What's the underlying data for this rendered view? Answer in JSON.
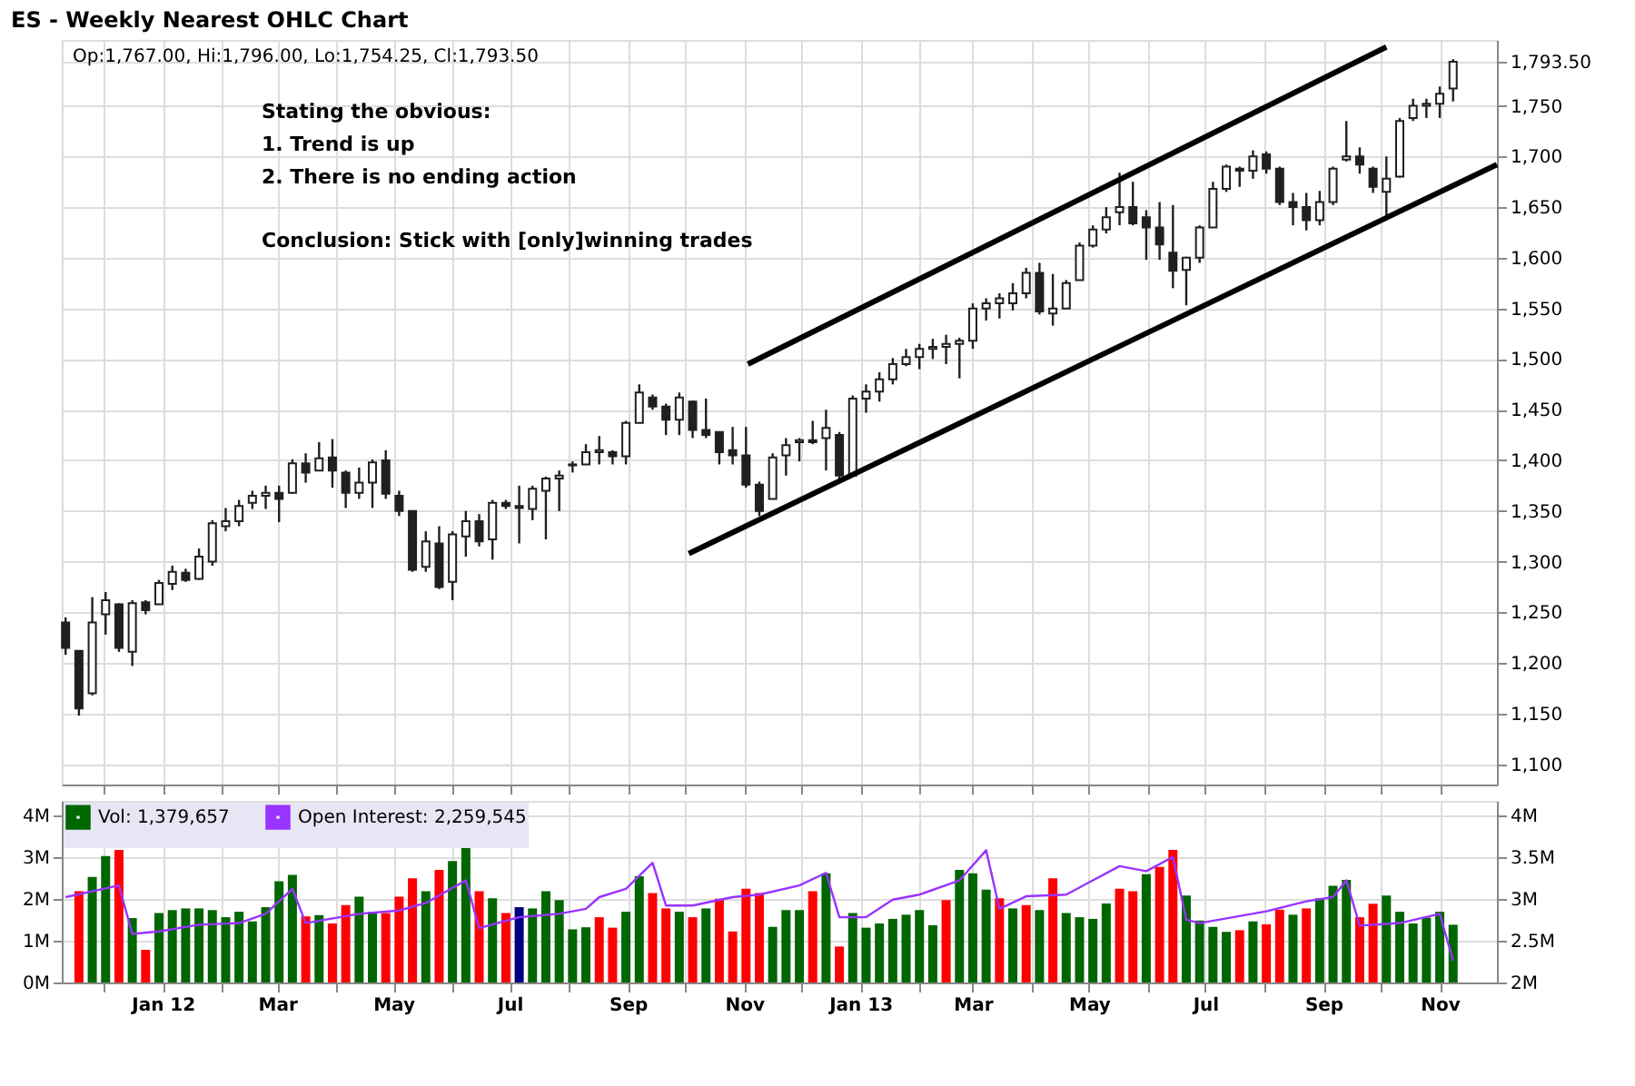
{
  "chart_data": [
    {
      "type": "candlestick",
      "title": "ES - Weekly Nearest OHLC Chart",
      "color": "#202020",
      "x": [
        "2011-11-11",
        "2011-11-18",
        "2011-11-25",
        "2011-12-02",
        "2011-12-09",
        "2011-12-16",
        "2011-12-23",
        "2011-12-30",
        "2012-01-06",
        "2012-01-13",
        "2012-01-20",
        "2012-01-27",
        "2012-02-03",
        "2012-02-10",
        "2012-02-17",
        "2012-02-24",
        "2012-03-02",
        "2012-03-09",
        "2012-03-16",
        "2012-03-23",
        "2012-03-30",
        "2012-04-06",
        "2012-04-13",
        "2012-04-20",
        "2012-04-27",
        "2012-05-04",
        "2012-05-11",
        "2012-05-18",
        "2012-05-25",
        "2012-06-01",
        "2012-06-08",
        "2012-06-15",
        "2012-06-22",
        "2012-06-29",
        "2012-07-06",
        "2012-07-13",
        "2012-07-20",
        "2012-07-27",
        "2012-08-03",
        "2012-08-10",
        "2012-08-17",
        "2012-08-24",
        "2012-08-31",
        "2012-09-07",
        "2012-09-14",
        "2012-09-21",
        "2012-09-28",
        "2012-10-05",
        "2012-10-12",
        "2012-10-19",
        "2012-10-26",
        "2012-11-02",
        "2012-11-09",
        "2012-11-16",
        "2012-11-23",
        "2012-11-30",
        "2012-12-07",
        "2012-12-14",
        "2012-12-21",
        "2012-12-28",
        "2013-01-04",
        "2013-01-11",
        "2013-01-18",
        "2013-01-25",
        "2013-02-01",
        "2013-02-08",
        "2013-02-15",
        "2013-02-22",
        "2013-03-01",
        "2013-03-08",
        "2013-03-15",
        "2013-03-22",
        "2013-03-29",
        "2013-04-05",
        "2013-04-12",
        "2013-04-19",
        "2013-04-26",
        "2013-05-03",
        "2013-05-10",
        "2013-05-17",
        "2013-05-24",
        "2013-05-31",
        "2013-06-07",
        "2013-06-14",
        "2013-06-21",
        "2013-06-28",
        "2013-07-05",
        "2013-07-12",
        "2013-07-19",
        "2013-07-26",
        "2013-08-02",
        "2013-08-09",
        "2013-08-16",
        "2013-08-23",
        "2013-08-30",
        "2013-09-06",
        "2013-09-13",
        "2013-09-20",
        "2013-09-27",
        "2013-10-04",
        "2013-10-11",
        "2013-10-18",
        "2013-10-25",
        "2013-11-01",
        "2013-11-08"
      ],
      "ohlc": [
        [
          1240,
          1245,
          1208,
          1215
        ],
        [
          1212,
          1212,
          1148,
          1155
        ],
        [
          1170,
          1265,
          1168,
          1240
        ],
        [
          1248,
          1270,
          1228,
          1262
        ],
        [
          1258,
          1259,
          1211,
          1215
        ],
        [
          1211,
          1262,
          1197,
          1259
        ],
        [
          1260,
          1262,
          1248,
          1252
        ],
        [
          1258,
          1282,
          1258,
          1279
        ],
        [
          1278,
          1296,
          1272,
          1290
        ],
        [
          1289,
          1293,
          1280,
          1282
        ],
        [
          1283,
          1313,
          1282,
          1305
        ],
        [
          1300,
          1341,
          1296,
          1338
        ],
        [
          1335,
          1353,
          1330,
          1340
        ],
        [
          1340,
          1361,
          1335,
          1355
        ],
        [
          1358,
          1370,
          1352,
          1365
        ],
        [
          1365,
          1375,
          1352,
          1368
        ],
        [
          1368,
          1375,
          1339,
          1362
        ],
        [
          1368,
          1401,
          1367,
          1397
        ],
        [
          1397,
          1407,
          1378,
          1388
        ],
        [
          1390,
          1418,
          1390,
          1402
        ],
        [
          1403,
          1421,
          1373,
          1390
        ],
        [
          1388,
          1390,
          1353,
          1368
        ],
        [
          1368,
          1393,
          1362,
          1378
        ],
        [
          1378,
          1401,
          1353,
          1398
        ],
        [
          1400,
          1410,
          1362,
          1367
        ],
        [
          1365,
          1370,
          1345,
          1350
        ],
        [
          1350,
          1350,
          1290,
          1292
        ],
        [
          1295,
          1330,
          1290,
          1320
        ],
        [
          1318,
          1335,
          1273,
          1275
        ],
        [
          1280,
          1330,
          1262,
          1327
        ],
        [
          1325,
          1350,
          1305,
          1340
        ],
        [
          1340,
          1347,
          1315,
          1320
        ],
        [
          1322,
          1361,
          1302,
          1358
        ],
        [
          1358,
          1361,
          1352,
          1355
        ],
        [
          1355,
          1375,
          1318,
          1353
        ],
        [
          1352,
          1375,
          1341,
          1372
        ],
        [
          1370,
          1384,
          1322,
          1382
        ],
        [
          1382,
          1390,
          1350,
          1385
        ],
        [
          1395,
          1399,
          1388,
          1396
        ],
        [
          1396,
          1416,
          1396,
          1408
        ],
        [
          1408,
          1424,
          1396,
          1410
        ],
        [
          1408,
          1410,
          1396,
          1404
        ],
        [
          1404,
          1439,
          1396,
          1437
        ],
        [
          1437,
          1475,
          1437,
          1467
        ],
        [
          1462,
          1465,
          1450,
          1453
        ],
        [
          1453,
          1456,
          1425,
          1440
        ],
        [
          1440,
          1467,
          1425,
          1462
        ],
        [
          1458,
          1459,
          1422,
          1430
        ],
        [
          1430,
          1461,
          1422,
          1425
        ],
        [
          1428,
          1428,
          1396,
          1408
        ],
        [
          1410,
          1433,
          1396,
          1405
        ],
        [
          1405,
          1433,
          1373,
          1376
        ],
        [
          1376,
          1379,
          1345,
          1350
        ],
        [
          1362,
          1407,
          1362,
          1403
        ],
        [
          1405,
          1422,
          1385,
          1415
        ],
        [
          1418,
          1422,
          1399,
          1420
        ],
        [
          1420,
          1439,
          1416,
          1418
        ],
        [
          1422,
          1450,
          1390,
          1432
        ],
        [
          1425,
          1428,
          1379,
          1385
        ],
        [
          1385,
          1464,
          1385,
          1461
        ],
        [
          1461,
          1475,
          1447,
          1468
        ],
        [
          1468,
          1487,
          1458,
          1480
        ],
        [
          1480,
          1501,
          1475,
          1495
        ],
        [
          1495,
          1510,
          1493,
          1502
        ],
        [
          1502,
          1515,
          1490,
          1510
        ],
        [
          1510,
          1520,
          1500,
          1512
        ],
        [
          1512,
          1524,
          1495,
          1515
        ],
        [
          1515,
          1521,
          1481,
          1518
        ],
        [
          1518,
          1555,
          1510,
          1550
        ],
        [
          1550,
          1560,
          1538,
          1555
        ],
        [
          1555,
          1565,
          1540,
          1560
        ],
        [
          1555,
          1575,
          1548,
          1565
        ],
        [
          1565,
          1590,
          1560,
          1585
        ],
        [
          1585,
          1595,
          1544,
          1547
        ],
        [
          1545,
          1584,
          1533,
          1550
        ],
        [
          1550,
          1578,
          1550,
          1575
        ],
        [
          1578,
          1615,
          1578,
          1612
        ],
        [
          1612,
          1632,
          1610,
          1628
        ],
        [
          1628,
          1650,
          1624,
          1640
        ],
        [
          1645,
          1684,
          1632,
          1650
        ],
        [
          1650,
          1675,
          1632,
          1634
        ],
        [
          1640,
          1647,
          1598,
          1630
        ],
        [
          1630,
          1655,
          1598,
          1613
        ],
        [
          1605,
          1652,
          1570,
          1587
        ],
        [
          1588,
          1601,
          1553,
          1600
        ],
        [
          1600,
          1632,
          1595,
          1630
        ],
        [
          1630,
          1675,
          1630,
          1668
        ],
        [
          1668,
          1692,
          1665,
          1690
        ],
        [
          1688,
          1690,
          1670,
          1686
        ],
        [
          1686,
          1706,
          1678,
          1700
        ],
        [
          1702,
          1705,
          1683,
          1688
        ],
        [
          1688,
          1690,
          1652,
          1655
        ],
        [
          1655,
          1664,
          1632,
          1650
        ],
        [
          1650,
          1664,
          1627,
          1637
        ],
        [
          1637,
          1666,
          1632,
          1655
        ],
        [
          1655,
          1690,
          1652,
          1688
        ],
        [
          1697,
          1735,
          1695,
          1700
        ],
        [
          1700,
          1709,
          1683,
          1692
        ],
        [
          1688,
          1690,
          1664,
          1670
        ],
        [
          1665,
          1700,
          1641,
          1678
        ],
        [
          1680,
          1738,
          1679,
          1735
        ],
        [
          1738,
          1757,
          1735,
          1750
        ],
        [
          1750,
          1757,
          1738,
          1752
        ],
        [
          1752,
          1769,
          1738,
          1762
        ],
        [
          1767,
          1796,
          1754.25,
          1793.5
        ]
      ],
      "series": [
        {
          "type": "line",
          "color": "#000000",
          "x": [
            "2012-11-03",
            "2013-10-04"
          ],
          "values": [
            1495,
            1808
          ]
        },
        {
          "type": "line",
          "color": "#000000",
          "x": [
            "2012-10-03",
            "2013-12-01"
          ],
          "values": [
            1308,
            1692
          ]
        }
      ],
      "xlim": [
        "2011-11-09",
        "2013-12-01"
      ],
      "xticks": [
        {
          "value": "2011-12-01",
          "label": null
        },
        {
          "value": "2012-01-01",
          "label": null
        },
        {
          "value": "2012-02-01",
          "label": null
        },
        {
          "value": "2012-03-01",
          "label": null
        },
        {
          "value": "2012-04-01",
          "label": null
        },
        {
          "value": "2012-05-01",
          "label": null
        },
        {
          "value": "2012-06-01",
          "label": null
        },
        {
          "value": "2012-07-01",
          "label": null
        },
        {
          "value": "2012-08-01",
          "label": null
        },
        {
          "value": "2012-09-01",
          "label": null
        },
        {
          "value": "2012-10-01",
          "label": null
        },
        {
          "value": "2012-11-01",
          "label": null
        },
        {
          "value": "2012-12-01",
          "label": null
        },
        {
          "value": "2013-01-01",
          "label": null
        },
        {
          "value": "2013-02-01",
          "label": null
        },
        {
          "value": "2013-03-01",
          "label": null
        },
        {
          "value": "2013-04-01",
          "label": null
        },
        {
          "value": "2013-05-01",
          "label": null
        },
        {
          "value": "2013-06-01",
          "label": null
        },
        {
          "value": "2013-07-01",
          "label": null
        },
        {
          "value": "2013-08-01",
          "label": null
        },
        {
          "value": "2013-09-01",
          "label": null
        },
        {
          "value": "2013-10-01",
          "label": null
        },
        {
          "value": "2013-11-01",
          "label": null
        }
      ],
      "ylim": [
        1080,
        1815
      ],
      "yticks": [
        {
          "value": 1100,
          "label": "1,100"
        },
        {
          "value": 1150,
          "label": "1,150"
        },
        {
          "value": 1200,
          "label": "1,200"
        },
        {
          "value": 1250,
          "label": "1,250"
        },
        {
          "value": 1300,
          "label": "1,300"
        },
        {
          "value": 1350,
          "label": "1,350"
        },
        {
          "value": 1400,
          "label": "1,400"
        },
        {
          "value": 1450,
          "label": "1,450"
        },
        {
          "value": 1500,
          "label": "1,500"
        },
        {
          "value": 1550,
          "label": "1,550"
        },
        {
          "value": 1600,
          "label": "1,600"
        },
        {
          "value": 1650,
          "label": "1,650"
        },
        {
          "value": 1700,
          "label": "1,700"
        },
        {
          "value": 1750,
          "label": "1,750"
        },
        {
          "value": 1793.5,
          "label": "1,793.50"
        }
      ],
      "tick_labels": "y",
      "grid": true,
      "annotations": [
        "Op:1,767.00, Hi:1,796.00, Lo:1,754.25, Cl:1,793.50",
        "Stating the obvious:",
        "1. Trend is up",
        "2. There is no ending action",
        "Conclusion: Stick with [only]winning trades"
      ]
    },
    {
      "type": "bar",
      "x": [
        "2011-11-18",
        "2011-11-25",
        "2011-12-02",
        "2011-12-09",
        "2011-12-16",
        "2011-12-23",
        "2011-12-30",
        "2012-01-06",
        "2012-01-13",
        "2012-01-20",
        "2012-01-27",
        "2012-02-03",
        "2012-02-10",
        "2012-02-17",
        "2012-02-24",
        "2012-03-02",
        "2012-03-09",
        "2012-03-16",
        "2012-03-23",
        "2012-03-30",
        "2012-04-06",
        "2012-04-13",
        "2012-04-20",
        "2012-04-27",
        "2012-05-04",
        "2012-05-11",
        "2012-05-18",
        "2012-05-25",
        "2012-06-01",
        "2012-06-08",
        "2012-06-15",
        "2012-06-22",
        "2012-06-29",
        "2012-07-06",
        "2012-07-13",
        "2012-07-20",
        "2012-07-27",
        "2012-08-03",
        "2012-08-10",
        "2012-08-17",
        "2012-08-24",
        "2012-08-31",
        "2012-09-07",
        "2012-09-14",
        "2012-09-21",
        "2012-09-28",
        "2012-10-05",
        "2012-10-12",
        "2012-10-19",
        "2012-10-26",
        "2012-11-02",
        "2012-11-09",
        "2012-11-16",
        "2012-11-23",
        "2012-11-30",
        "2012-12-07",
        "2012-12-14",
        "2012-12-21",
        "2012-12-28",
        "2013-01-04",
        "2013-01-11",
        "2013-01-18",
        "2013-01-25",
        "2013-02-01",
        "2013-02-08",
        "2013-02-15",
        "2013-02-22",
        "2013-03-01",
        "2013-03-08",
        "2013-03-15",
        "2013-03-22",
        "2013-03-29",
        "2013-04-05",
        "2013-04-12",
        "2013-04-19",
        "2013-04-26",
        "2013-05-03",
        "2013-05-10",
        "2013-05-17",
        "2013-05-24",
        "2013-05-31",
        "2013-06-07",
        "2013-06-14",
        "2013-06-21",
        "2013-06-28",
        "2013-07-05",
        "2013-07-12",
        "2013-07-19",
        "2013-07-26",
        "2013-08-02",
        "2013-08-09",
        "2013-08-16",
        "2013-08-23",
        "2013-08-30",
        "2013-09-06",
        "2013-09-13",
        "2013-09-20",
        "2013-09-27",
        "2013-10-04",
        "2013-10-11",
        "2013-10-18",
        "2013-10-25",
        "2013-11-01",
        "2013-11-08"
      ],
      "series": [
        {
          "name": "Vol: 1,379,657",
          "type": "bar",
          "color": "#006600",
          "values": [
            2.18,
            2.52,
            3.02,
            3.17,
            1.54,
            0.78,
            1.66,
            1.73,
            1.77,
            1.77,
            1.73,
            1.56,
            1.69,
            1.46,
            1.8,
            2.42,
            2.57,
            1.58,
            1.61,
            1.41,
            1.85,
            2.05,
            1.69,
            1.66,
            2.05,
            2.49,
            2.18,
            2.69,
            2.9,
            3.24,
            2.18,
            2.01,
            1.66,
            1.8,
            1.77,
            2.18,
            1.97,
            1.27,
            1.32,
            1.56,
            1.31,
            1.69,
            2.54,
            2.14,
            1.77,
            1.69,
            1.56,
            1.77,
            2.0,
            1.22,
            2.24,
            2.14,
            1.33,
            1.73,
            1.73,
            2.18,
            2.61,
            0.86,
            1.66,
            1.31,
            1.41,
            1.52,
            1.62,
            1.73,
            1.37,
            1.97,
            2.69,
            2.61,
            2.22,
            2.01,
            1.77,
            1.85,
            1.73,
            2.49,
            1.66,
            1.56,
            1.52,
            1.89,
            2.24,
            2.18,
            2.59,
            2.76,
            3.17,
            2.08,
            1.48,
            1.33,
            1.21,
            1.25,
            1.46,
            1.39,
            1.74,
            1.62,
            1.77,
            2.01,
            2.31,
            2.45,
            1.56,
            1.88,
            2.08,
            1.69,
            1.41,
            1.55,
            1.69,
            1.38
          ],
          "colors": [
            "#ff0000",
            "#006600",
            "#006600",
            "#ff0000",
            "#006600",
            "#ff0000",
            "#006600",
            "#006600",
            "#006600",
            "#006600",
            "#006600",
            "#006600",
            "#006600",
            "#006600",
            "#006600",
            "#006600",
            "#006600",
            "#ff0000",
            "#006600",
            "#ff0000",
            "#ff0000",
            "#006600",
            "#006600",
            "#ff0000",
            "#ff0000",
            "#ff0000",
            "#006600",
            "#ff0000",
            "#006600",
            "#006600",
            "#ff0000",
            "#006600",
            "#ff0000",
            "#000080",
            "#006600",
            "#006600",
            "#006600",
            "#006600",
            "#006600",
            "#ff0000",
            "#ff0000",
            "#006600",
            "#006600",
            "#ff0000",
            "#ff0000",
            "#006600",
            "#ff0000",
            "#006600",
            "#ff0000",
            "#ff0000",
            "#ff0000",
            "#ff0000",
            "#006600",
            "#006600",
            "#006600",
            "#ff0000",
            "#006600",
            "#ff0000",
            "#006600",
            "#006600",
            "#006600",
            "#006600",
            "#006600",
            "#006600",
            "#006600",
            "#ff0000",
            "#006600",
            "#006600",
            "#006600",
            "#ff0000",
            "#006600",
            "#ff0000",
            "#006600",
            "#ff0000",
            "#006600",
            "#006600",
            "#006600",
            "#006600",
            "#ff0000",
            "#ff0000",
            "#006600",
            "#ff0000",
            "#ff0000",
            "#006600",
            "#006600",
            "#006600",
            "#006600",
            "#ff0000",
            "#006600",
            "#ff0000",
            "#ff0000",
            "#006600",
            "#ff0000",
            "#006600",
            "#006600",
            "#006600",
            "#ff0000",
            "#ff0000",
            "#006600",
            "#006600",
            "#006600",
            "#006600",
            "#006600",
            "#006600"
          ]
        },
        {
          "name": "Open Interest: 2,259,545",
          "type": "line",
          "axis": "y2",
          "color": "#9933ff",
          "x": [
            "2011-11-11",
            "2011-12-09",
            "2011-12-16",
            "2011-12-30",
            "2012-01-20",
            "2012-02-10",
            "2012-02-24",
            "2012-03-09",
            "2012-03-16",
            "2012-04-13",
            "2012-05-04",
            "2012-05-18",
            "2012-06-08",
            "2012-06-15",
            "2012-07-06",
            "2012-07-27",
            "2012-08-10",
            "2012-08-17",
            "2012-08-31",
            "2012-09-14",
            "2012-09-21",
            "2012-10-05",
            "2012-10-26",
            "2012-11-09",
            "2012-11-30",
            "2012-12-14",
            "2012-12-21",
            "2013-01-04",
            "2013-01-18",
            "2013-02-01",
            "2013-02-22",
            "2013-03-08",
            "2013-03-15",
            "2013-03-29",
            "2013-04-19",
            "2013-05-03",
            "2013-05-17",
            "2013-05-31",
            "2013-06-14",
            "2013-06-21",
            "2013-06-28",
            "2013-08-02",
            "2013-08-23",
            "2013-09-06",
            "2013-09-13",
            "2013-09-20",
            "2013-10-11",
            "2013-11-01",
            "2013-11-08"
          ],
          "values": [
            3.02,
            3.16,
            2.58,
            2.61,
            2.69,
            2.71,
            2.82,
            3.12,
            2.71,
            2.82,
            2.86,
            2.95,
            3.22,
            2.65,
            2.78,
            2.82,
            2.88,
            3.02,
            3.12,
            3.43,
            2.92,
            2.92,
            3.02,
            3.05,
            3.16,
            3.31,
            2.78,
            2.78,
            2.99,
            3.05,
            3.22,
            3.58,
            2.88,
            3.03,
            3.05,
            3.22,
            3.39,
            3.33,
            3.5,
            2.75,
            2.71,
            2.85,
            2.97,
            3.02,
            3.22,
            2.68,
            2.71,
            2.82,
            2.26
          ]
        }
      ],
      "xlim": [
        "2011-11-09",
        "2013-12-01"
      ],
      "xticks": [
        {
          "value": "2011-12-01",
          "label": null
        },
        {
          "value": "2012-01-01",
          "label": "Jan 12"
        },
        {
          "value": "2012-02-01",
          "label": null
        },
        {
          "value": "2012-03-01",
          "label": "Mar"
        },
        {
          "value": "2012-04-01",
          "label": null
        },
        {
          "value": "2012-05-01",
          "label": "May"
        },
        {
          "value": "2012-06-01",
          "label": null
        },
        {
          "value": "2012-07-01",
          "label": "Jul"
        },
        {
          "value": "2012-08-01",
          "label": null
        },
        {
          "value": "2012-09-01",
          "label": "Sep"
        },
        {
          "value": "2012-10-01",
          "label": null
        },
        {
          "value": "2012-11-01",
          "label": "Nov"
        },
        {
          "value": "2012-12-01",
          "label": null
        },
        {
          "value": "2013-01-01",
          "label": "Jan 13"
        },
        {
          "value": "2013-02-01",
          "label": null
        },
        {
          "value": "2013-03-01",
          "label": "Mar"
        },
        {
          "value": "2013-04-01",
          "label": null
        },
        {
          "value": "2013-05-01",
          "label": "May"
        },
        {
          "value": "2013-06-01",
          "label": null
        },
        {
          "value": "2013-07-01",
          "label": "Jul"
        },
        {
          "value": "2013-08-01",
          "label": null
        },
        {
          "value": "2013-09-01",
          "label": "Sep"
        },
        {
          "value": "2013-10-01",
          "label": null
        },
        {
          "value": "2013-11-01",
          "label": "Nov"
        }
      ],
      "ylim": [
        0,
        4.34
      ],
      "yticks": [
        {
          "value": 0,
          "label": "0M"
        },
        {
          "value": 1,
          "label": "1M"
        },
        {
          "value": 2,
          "label": "2M"
        },
        {
          "value": 3,
          "label": "3M"
        },
        {
          "value": 4,
          "label": "4M"
        }
      ],
      "y2lim": [
        2,
        4.17
      ],
      "y2ticks": [
        {
          "value": 2,
          "label": "2M"
        },
        {
          "value": 2.5,
          "label": "2.5M"
        },
        {
          "value": 3,
          "label": "3M"
        },
        {
          "value": 3.5,
          "label": "3.5M"
        },
        {
          "value": 4,
          "label": "4M"
        }
      ],
      "grid": true,
      "legend": "top left"
    }
  ]
}
